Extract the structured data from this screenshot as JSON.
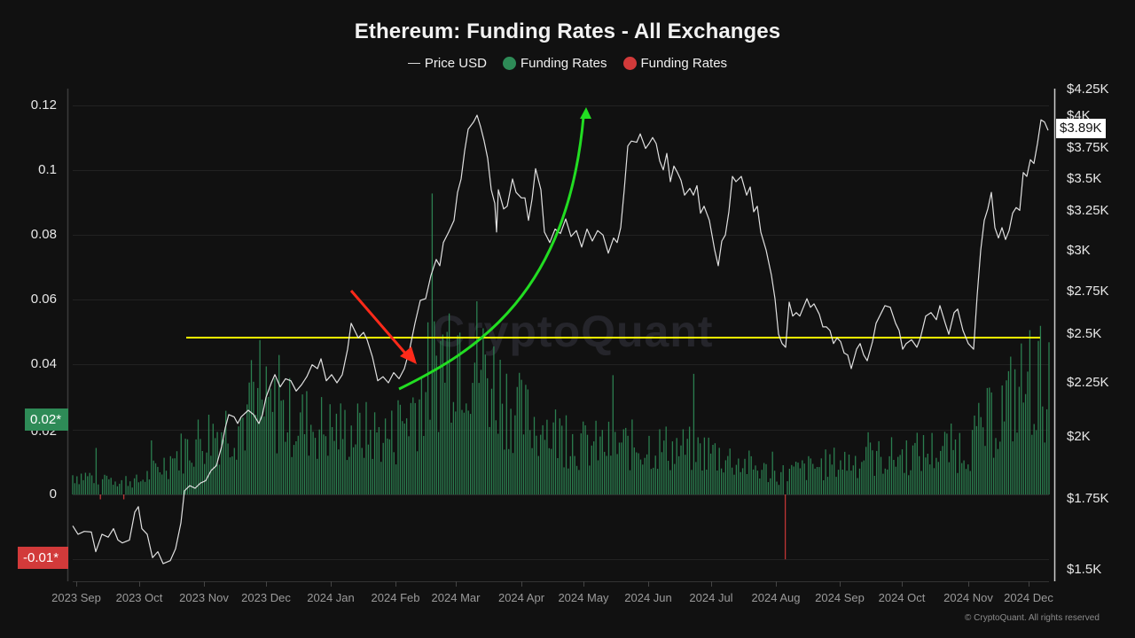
{
  "header": {
    "title": "Ethereum: Funding Rates - All Exchanges",
    "legend": [
      {
        "label": "Price USD",
        "type": "line",
        "color": "#d8d8d8"
      },
      {
        "label": "Funding Rates",
        "type": "dot",
        "color": "#2e8b57"
      },
      {
        "label": "Funding Rates",
        "type": "dot",
        "color": "#d23a3a"
      }
    ]
  },
  "axes": {
    "left_ticks": [
      "0.12",
      "0.1",
      "0.08",
      "0.06",
      "0.04",
      "0.02",
      "0",
      "-0.01"
    ],
    "right_ticks": [
      "$4.25K",
      "$4K",
      "$3.75K",
      "$3.5K",
      "$3.25K",
      "$3K",
      "$2.75K",
      "$2.5K",
      "$2.25K",
      "$2K",
      "$1.75K",
      "$1.5K"
    ],
    "x_ticks": [
      "2023 Sep",
      "2023 Oct",
      "2023 Nov",
      "2023 Dec",
      "2024 Jan",
      "2024 Feb",
      "2024 Mar",
      "2024 Apr",
      "2024 May",
      "2024 Jun",
      "2024 Jul",
      "2024 Aug",
      "2024 Sep",
      "2024 Oct",
      "2024 Nov",
      "2024 Dec"
    ]
  },
  "badges": {
    "current_funding_high": "0.02*",
    "current_funding_low": "-0.01*",
    "current_price": "$3.89K"
  },
  "watermark": "CryptoQuant",
  "footer": {
    "copyright": "© CryptoQuant. All rights reserved"
  },
  "colors": {
    "background": "#111111",
    "positive_bar": "#2e8b57",
    "negative_bar": "#d23a3a",
    "price_line": "#d8d8d8",
    "support_line": "#ffff00",
    "up_arrow": "#22dd22",
    "down_arrow": "#ff2a1a"
  },
  "chart_data": {
    "type": "bar+line",
    "title": "Ethereum: Funding Rates - All Exchanges",
    "xlabel": "",
    "ylabel_left": "Funding Rates",
    "ylabel_right": "Price USD",
    "ylim_left": [
      -0.01,
      0.12
    ],
    "ylim_right": [
      1500,
      4250
    ],
    "right_axis_scale": "log",
    "legend_position": "top-center",
    "grid": true,
    "categories": [
      "2023 Sep",
      "2023 Oct",
      "2023 Nov",
      "2023 Dec",
      "2024 Jan",
      "2024 Feb",
      "2024 Mar",
      "2024 Apr",
      "2024 May",
      "2024 Jun",
      "2024 Jul",
      "2024 Aug",
      "2024 Sep",
      "2024 Oct",
      "2024 Nov",
      "2024 Dec"
    ],
    "series": [
      {
        "name": "Price USD (approx. monthly)",
        "axis": "right",
        "values": [
          1640,
          1580,
          1820,
          2080,
          2300,
          2300,
          3400,
          3450,
          3000,
          3800,
          3450,
          2600,
          2450,
          2550,
          2500,
          3900
        ]
      },
      {
        "name": "Funding Rates (approx. monthly typical)",
        "axis": "left",
        "values": [
          0.006,
          0.004,
          0.018,
          0.026,
          0.02,
          0.018,
          0.05,
          0.024,
          0.015,
          0.015,
          0.013,
          0.006,
          0.01,
          0.012,
          0.015,
          0.035
        ]
      }
    ],
    "annotations": [
      {
        "type": "horizontal_line",
        "color": "yellow",
        "price_level": 2500
      },
      {
        "type": "arrow",
        "color": "red",
        "direction": "down",
        "near": "2024 Feb"
      },
      {
        "type": "curved_arrow",
        "color": "green",
        "direction": "up",
        "from": "2024 Feb",
        "to": "2024 May"
      },
      {
        "type": "negative_spike",
        "near": "2024 Aug",
        "value": -0.02
      }
    ],
    "last_price": "$3.89K"
  }
}
